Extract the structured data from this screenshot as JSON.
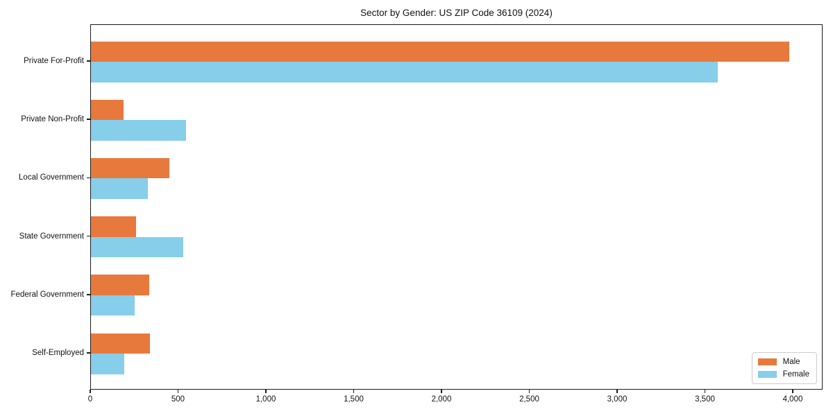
{
  "chart_data": {
    "type": "bar",
    "orientation": "horizontal",
    "title": "Sector by Gender: US ZIP Code 36109 (2024)",
    "categories": [
      "Private For-Profit",
      "Private Non-Profit",
      "Local Government",
      "State Government",
      "Federal Government",
      "Self-Employed"
    ],
    "series": [
      {
        "name": "Male",
        "color": "#E8793D",
        "values": [
          3975,
          185,
          445,
          255,
          330,
          335
        ]
      },
      {
        "name": "Female",
        "color": "#87CEEB",
        "values": [
          3570,
          540,
          325,
          525,
          250,
          190
        ]
      }
    ],
    "xlabel": "",
    "ylabel": "",
    "xlim": [
      0,
      4170
    ],
    "xticks": [
      {
        "value": 0,
        "label": "0"
      },
      {
        "value": 500,
        "label": "500"
      },
      {
        "value": 1000,
        "label": "1,000"
      },
      {
        "value": 1500,
        "label": "1,500"
      },
      {
        "value": 2000,
        "label": "2,000"
      },
      {
        "value": 2500,
        "label": "2,500"
      },
      {
        "value": 3000,
        "label": "3,000"
      },
      {
        "value": 3500,
        "label": "3,500"
      },
      {
        "value": 4000,
        "label": "4,000"
      }
    ],
    "grid": false,
    "legend_position": "lower right",
    "frame_color": "#1a1a1a",
    "background_color": "#ffffff"
  }
}
